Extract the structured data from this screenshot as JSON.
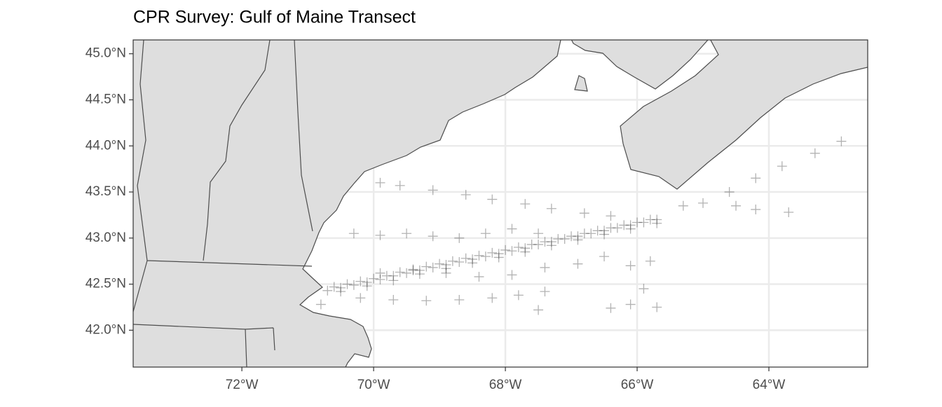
{
  "chart_data": {
    "type": "scatter",
    "title": "CPR Survey: Gulf of Maine Transect",
    "marker": "+",
    "color": "#000000",
    "opacity": 0.3,
    "grid": true,
    "xlim": [
      -73.65,
      -62.5
    ],
    "ylim": [
      41.6,
      45.15
    ],
    "xticks": [
      {
        "value": -72,
        "label": "72°W"
      },
      {
        "value": -70,
        "label": "70°W"
      },
      {
        "value": -68,
        "label": "68°W"
      },
      {
        "value": -66,
        "label": "66°W"
      },
      {
        "value": -64,
        "label": "64°W"
      }
    ],
    "yticks": [
      {
        "value": 42.0,
        "label": "42.0°N"
      },
      {
        "value": 42.5,
        "label": "42.5°N"
      },
      {
        "value": 43.0,
        "label": "43.0°N"
      },
      {
        "value": 43.5,
        "label": "43.5°N"
      },
      {
        "value": 44.0,
        "label": "44.0°N"
      },
      {
        "value": 44.5,
        "label": "44.5°N"
      },
      {
        "value": 45.0,
        "label": "45.0°N"
      }
    ],
    "x": [
      -70.7,
      -70.5,
      -70.3,
      -70.1,
      -69.9,
      -69.7,
      -69.5,
      -69.3,
      -69.1,
      -68.9,
      -68.7,
      -68.5,
      -68.3,
      -68.1,
      -67.9,
      -67.7,
      -67.5,
      -67.3,
      -67.1,
      -66.9,
      -66.7,
      -66.5,
      -66.3,
      -66.1,
      -65.9,
      -65.7,
      -70.6,
      -70.4,
      -70.2,
      -70.0,
      -69.8,
      -69.6,
      -69.4,
      -69.2,
      -69.0,
      -68.8,
      -68.6,
      -68.4,
      -68.2,
      -68.0,
      -67.8,
      -67.6,
      -67.4,
      -67.2,
      -67.0,
      -66.8,
      -66.6,
      -66.4,
      -66.2,
      -66.0,
      -65.8,
      -70.5,
      -70.1,
      -69.7,
      -69.3,
      -68.9,
      -68.5,
      -68.1,
      -67.7,
      -67.3,
      -66.9,
      -66.5,
      -66.1,
      -65.7,
      -69.9,
      -69.6,
      -69.1,
      -68.6,
      -68.2,
      -67.7,
      -67.3,
      -66.8,
      -66.4,
      -70.2,
      -69.7,
      -69.2,
      -68.7,
      -68.2,
      -67.8,
      -67.4,
      -70.3,
      -69.9,
      -69.5,
      -69.1,
      -68.7,
      -68.3,
      -67.9,
      -67.5,
      -69.9,
      -69.4,
      -68.9,
      -68.4,
      -67.9,
      -67.4,
      -66.9,
      -66.5,
      -65.3,
      -65.0,
      -64.6,
      -64.5,
      -64.2,
      -64.2,
      -63.8,
      -63.7,
      -63.3,
      -62.9,
      -66.4,
      -66.1,
      -65.9,
      -65.7,
      -67.5,
      -66.1,
      -65.8,
      -70.8
    ],
    "values": [
      42.43,
      42.46,
      42.49,
      42.52,
      42.55,
      42.59,
      42.62,
      42.65,
      42.68,
      42.71,
      42.74,
      42.77,
      42.8,
      42.83,
      42.86,
      42.89,
      42.93,
      42.96,
      42.99,
      43.02,
      43.05,
      43.08,
      43.11,
      43.14,
      43.17,
      43.2,
      42.47,
      42.5,
      42.53,
      42.56,
      42.59,
      42.63,
      42.66,
      42.69,
      42.72,
      42.75,
      42.78,
      42.81,
      42.84,
      42.87,
      42.9,
      42.93,
      42.96,
      42.99,
      43.02,
      43.05,
      43.08,
      43.11,
      43.14,
      43.17,
      43.2,
      42.42,
      42.48,
      42.54,
      42.61,
      42.67,
      42.73,
      42.79,
      42.85,
      42.92,
      42.98,
      43.04,
      43.1,
      43.16,
      43.6,
      43.57,
      43.52,
      43.47,
      43.42,
      43.37,
      43.32,
      43.27,
      43.24,
      42.35,
      42.33,
      42.32,
      42.33,
      42.35,
      42.38,
      42.42,
      43.05,
      43.03,
      43.05,
      43.02,
      43.0,
      43.05,
      43.1,
      43.05,
      42.62,
      42.65,
      42.62,
      42.58,
      42.6,
      42.68,
      42.72,
      42.8,
      43.35,
      43.38,
      43.5,
      43.35,
      43.65,
      43.31,
      43.78,
      43.28,
      43.92,
      44.05,
      42.24,
      42.28,
      42.45,
      42.25,
      42.22,
      42.7,
      42.75,
      42.28
    ]
  }
}
